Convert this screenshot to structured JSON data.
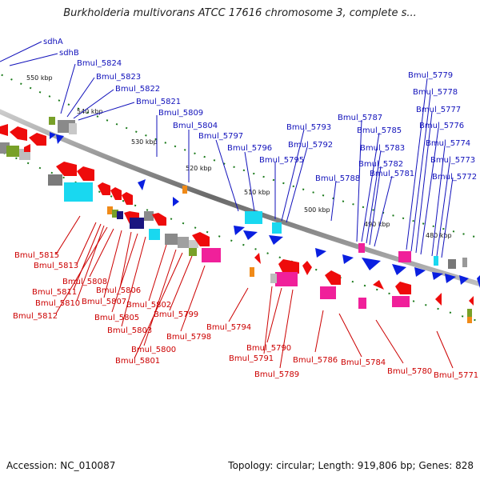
{
  "title": "Burkholderia multivorans ATCC 17616 chromosome 3, complete s...",
  "footer": {
    "accession": "Accession: NC_010087",
    "summary": "Topology: circular; Length: 919,806 bp; Genes: 828"
  },
  "scale_labels": [
    "550 kbp",
    "540 kbp",
    "530 kbp",
    "520 kbp",
    "510 kbp",
    "500 kbp",
    "490 kbp",
    "480 kbp"
  ],
  "top_genes": [
    "sdhA",
    "sdhB",
    "Bmul_5824",
    "Bmul_5823",
    "Bmul_5822",
    "Bmul_5821",
    "Bmul_5809",
    "Bmul_5804",
    "Bmul_5797",
    "Bmul_5796",
    "Bmul_5795",
    "Bmul_5793",
    "Bmul_5792",
    "Bmul_5788",
    "Bmul_5787",
    "Bmul_5785",
    "Bmul_5783",
    "Bmul_5782",
    "Bmul_5781",
    "Bmul_5779",
    "Bmul_5778",
    "Bmul_5777",
    "Bmul_5776",
    "Bmul_5774",
    "Bmul_5773",
    "Bmul_5772"
  ],
  "bottom_genes": [
    "Bmul_5815",
    "Bmul_5813",
    "Bmul_5811",
    "Bmul_5810",
    "Bmul_5812",
    "Bmul_5808",
    "Bmul_5807",
    "Bmul_5806",
    "Bmul_5805",
    "Bmul_5803",
    "Bmul_5802",
    "Bmul_5800",
    "Bmul_5801",
    "Bmul_5799",
    "Bmul_5798",
    "Bmul_5794",
    "Bmul_5791",
    "Bmul_5790",
    "Bmul_5789",
    "Bmul_5786",
    "Bmul_5784",
    "Bmul_5780",
    "Bmul_5771"
  ],
  "colors": {
    "forward": "#0a1fe0",
    "reverse": "#ee0b0b",
    "backbone": "#808080",
    "tick": "#1a7a1a",
    "cyan": "#19d8f0",
    "magenta": "#f0209a",
    "gray": "#8a8a8a",
    "olive": "#78a028",
    "orange": "#f08a18",
    "navy": "#1a1480"
  }
}
